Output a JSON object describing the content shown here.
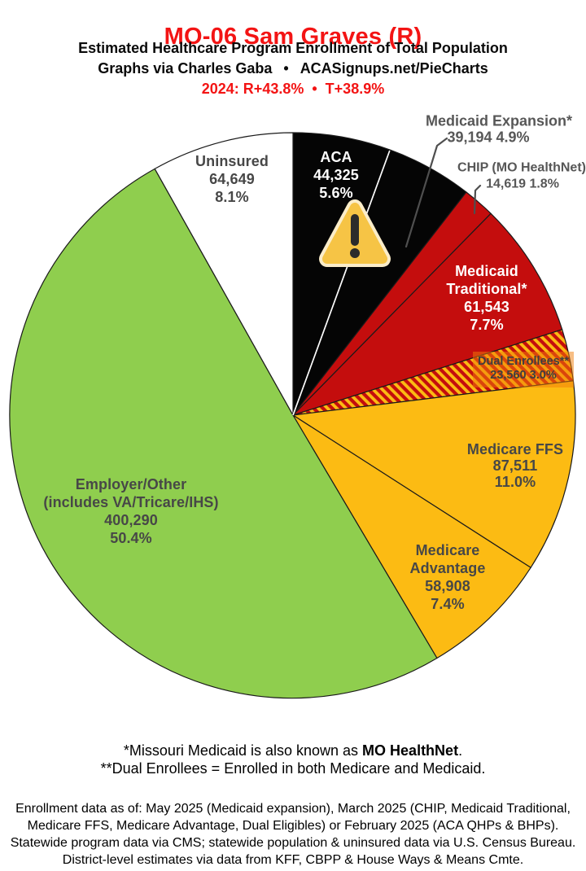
{
  "header": {
    "title": "MO-06 Sam Graves (R)",
    "subtitle": "Estimated Healthcare Program Enrollment of Total Population",
    "byline": "Graphs via Charles Gaba",
    "bullet": "•",
    "site": "ACASignups.net/PieCharts",
    "partisan_left": "2024: R+43.8%",
    "partisan_right": "T+38.9%"
  },
  "chart_data": {
    "type": "pie",
    "title": "MO-06 Sam Graves (R) — Estimated Healthcare Program Enrollment of Total Population",
    "units": "people",
    "start_at": "12-oclock",
    "direction": "clockwise",
    "legend_position": "labels-on-slices-and-callouts",
    "slices": [
      {
        "label": "ACA",
        "value": 44325,
        "value_str": "44,325",
        "pct": 5.6,
        "pct_str": "5.6%",
        "color": "#050505",
        "label_color": "#FFFFFF",
        "label_placement": "inside"
      },
      {
        "label": "Medicaid Expansion*",
        "value": 39194,
        "value_str": "39,194",
        "pct": 4.9,
        "pct_str": "4.9%",
        "color": "#050505",
        "label_color": "#575757",
        "label_placement": "callout"
      },
      {
        "label": "CHIP (MO HealthNet)",
        "value": 14619,
        "value_str": "14,619",
        "pct": 1.8,
        "pct_str": "1.8%",
        "color": "#C40D0D",
        "label_color": "#575757",
        "label_placement": "callout"
      },
      {
        "label": "Medicaid Traditional*",
        "label_lines": [
          "Medicaid",
          "Traditional*"
        ],
        "value": 61543,
        "value_str": "61,543",
        "pct": 7.7,
        "pct_str": "7.7%",
        "color": "#C40D0D",
        "label_color": "#FFFFFF",
        "label_placement": "inside"
      },
      {
        "label": "Dual Enrollees**",
        "value": 23560,
        "value_str": "23,560",
        "pct": 3.0,
        "pct_str": "3.0%",
        "pattern": "hatch",
        "color": "#C40D0D",
        "pattern_stripe": "#FCBB13",
        "label_color": "#3F3F3F",
        "label_placement": "inside-highlight"
      },
      {
        "label": "Medicare FFS",
        "value": 87511,
        "value_str": "87,511",
        "pct": 11.0,
        "pct_str": "11.0%",
        "color": "#FCBB13",
        "label_color": "#474747",
        "label_placement": "inside"
      },
      {
        "label": "Medicare Advantage",
        "label_lines": [
          "Medicare",
          "Advantage"
        ],
        "value": 58908,
        "value_str": "58,908",
        "pct": 7.4,
        "pct_str": "7.4%",
        "color": "#FCBB13",
        "label_color": "#474747",
        "label_placement": "inside"
      },
      {
        "label": "Employer/Other (includes VA/Tricare/IHS)",
        "label_lines": [
          "Employer/Other",
          "(includes VA/Tricare/IHS)"
        ],
        "value": 400290,
        "value_str": "400,290",
        "pct": 50.4,
        "pct_str": "50.4%",
        "color": "#8FCE4E",
        "label_color": "#3F3F3F",
        "label_placement": "inside"
      },
      {
        "label": "Uninsured",
        "value": 64649,
        "value_str": "64,649",
        "pct": 8.1,
        "pct_str": "8.1%",
        "color": "#FFFFFF",
        "label_color": "#474747",
        "label_placement": "inside"
      }
    ],
    "colors": {
      "accent_red": "#F31414",
      "slice_black": "#050505",
      "slice_red": "#C40D0D",
      "slice_gold": "#FCBB13",
      "slice_green": "#8FCE4E",
      "slice_white": "#FFFFFF",
      "outline": "#1A1A1A",
      "callout_gray": "#575757",
      "highlight_orange": "rgba(240,125,10,0.5)"
    },
    "icons": [
      {
        "name": "warning-triangle-icon",
        "glyph": "⚠",
        "fill": "#F6C445",
        "mark_color": "#2B2B2B",
        "location": "ACA slice"
      }
    ]
  },
  "footnotes": {
    "line1_prefix": "*Missouri Medicaid is also known as ",
    "line1_bold": "MO HealthNet",
    "line1_suffix": ".",
    "line2": "**Dual Enrollees = Enrolled in both Medicare and Medicaid."
  },
  "source": {
    "line1": "Enrollment data as of: May 2025 (Medicaid expansion), March 2025 (CHIP, Medicaid Traditional,",
    "line2": "Medicare FFS, Medicare Advantage, Dual Eligibles) or February 2025 (ACA QHPs & BHPs).",
    "line3": "Statewide program data via CMS; statewide population & uninsured data via U.S. Census Bureau.",
    "line4": "District-level estimates via data from KFF, CBPP & House Ways & Means Cmte."
  }
}
